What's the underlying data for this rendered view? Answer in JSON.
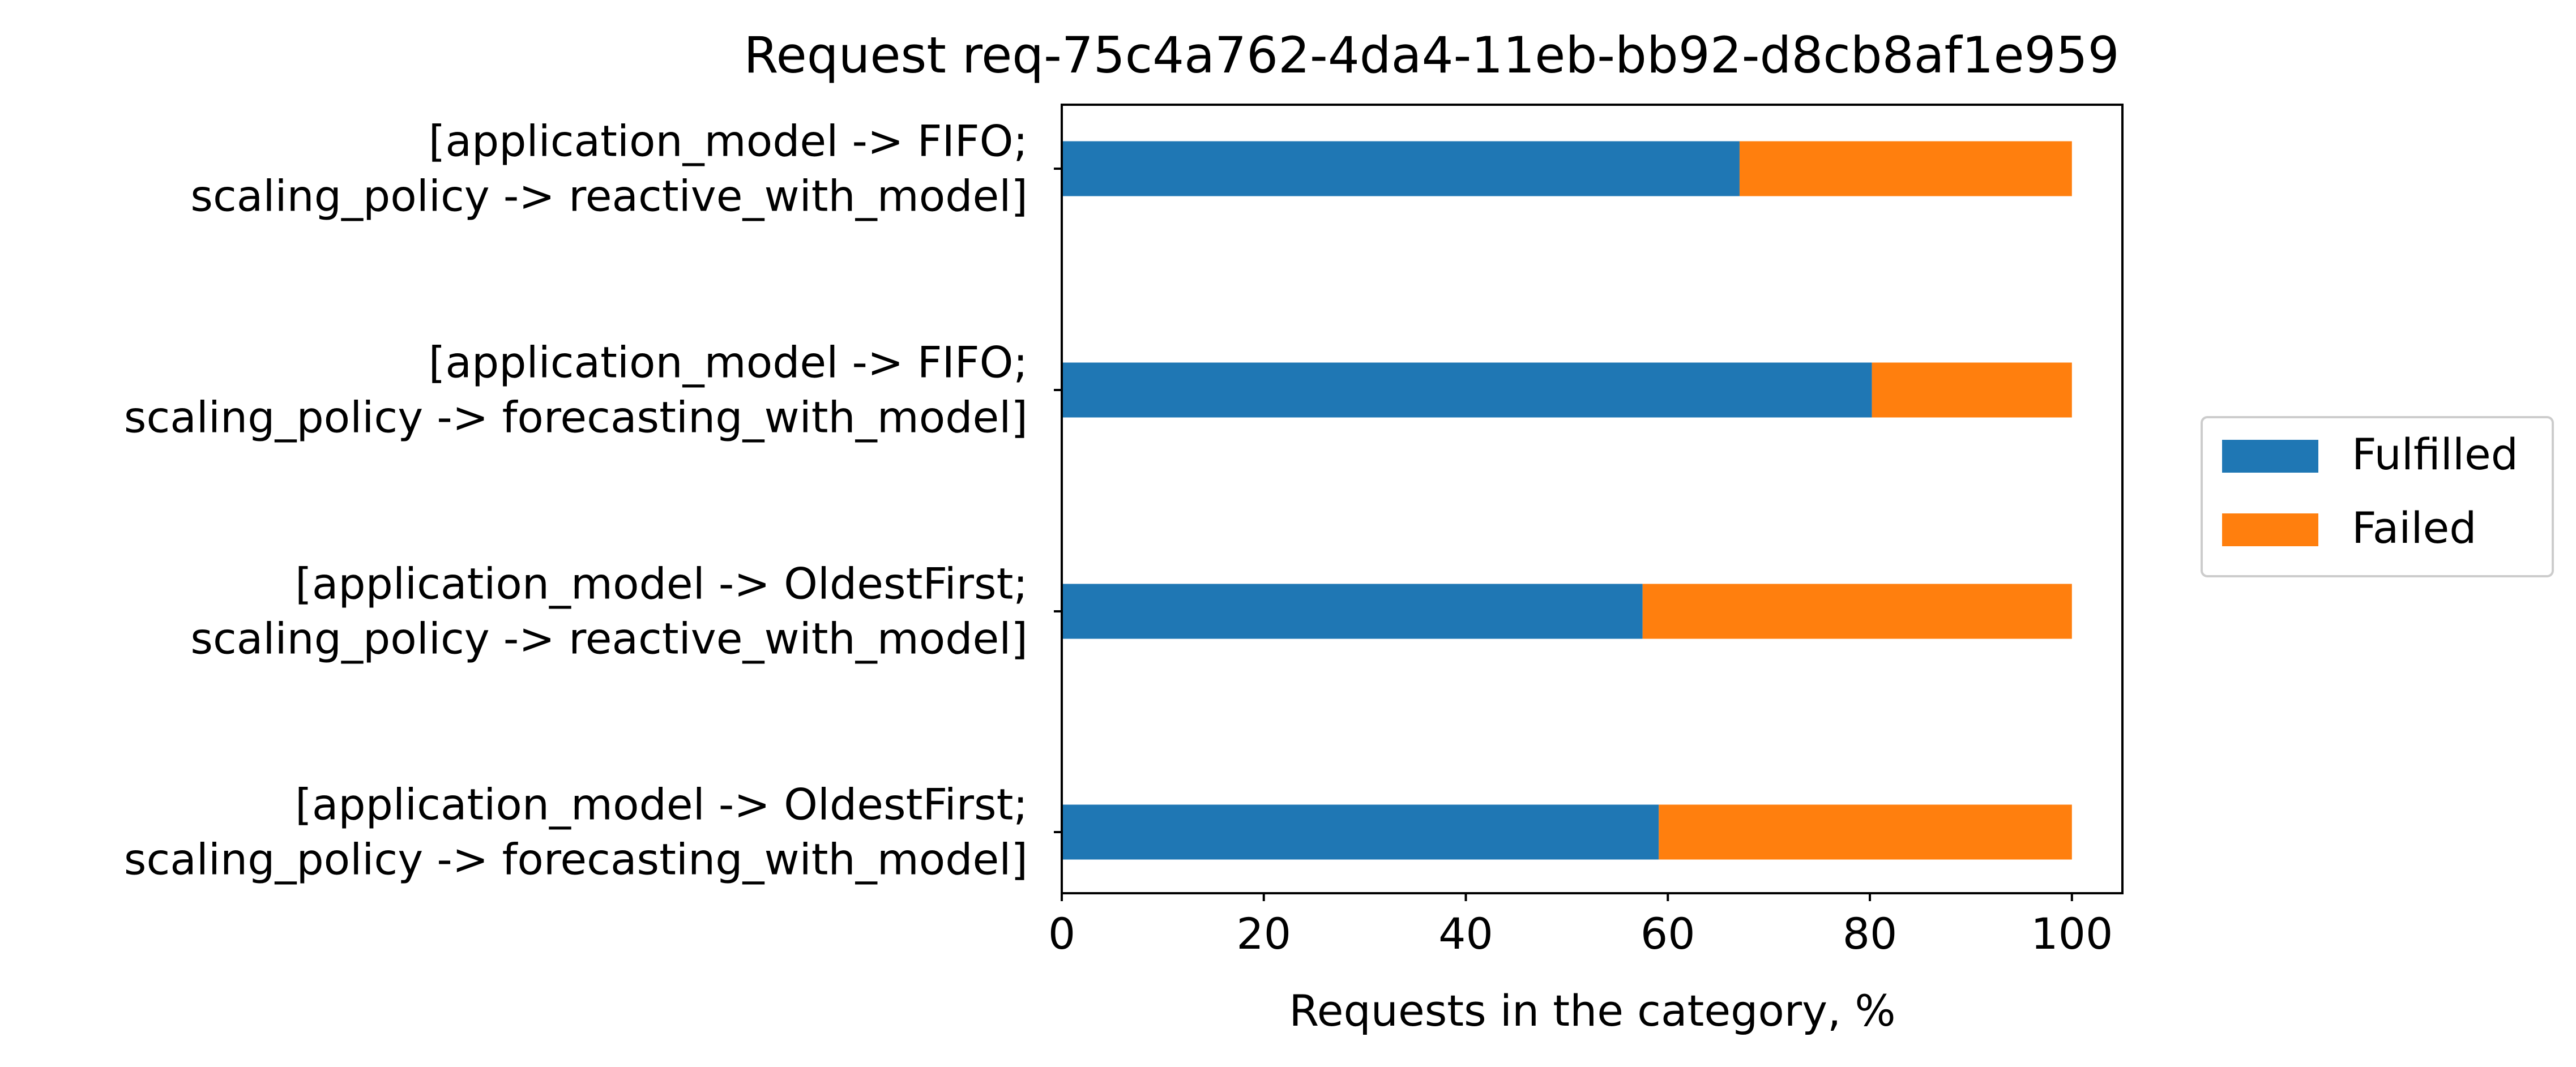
{
  "chart_data": {
    "type": "bar",
    "orientation": "horizontal",
    "stacked": true,
    "title": "Request req-75c4a762-4da4-11eb-bb92-d8cb8af1e959",
    "xlabel": "Requests in the category, %",
    "ylabel": "",
    "xlim": [
      0,
      105
    ],
    "x_ticks": [
      "0",
      "20",
      "40",
      "60",
      "80",
      "100"
    ],
    "grid": false,
    "legend_position": "right",
    "categories": [
      [
        "[application_model -> FIFO;",
        "scaling_policy -> reactive_with_model]"
      ],
      [
        "[application_model -> FIFO;",
        "scaling_policy -> forecasting_with_model]"
      ],
      [
        "[application_model -> OldestFirst;",
        "scaling_policy -> reactive_with_model]"
      ],
      [
        "[application_model -> OldestFirst;",
        "scaling_policy -> forecasting_with_model]"
      ]
    ],
    "series": [
      {
        "name": "Fulfilled",
        "color": "#1f77b4",
        "values": [
          67.1,
          80.2,
          57.5,
          59.1
        ]
      },
      {
        "name": "Failed",
        "color": "#ff7f0e",
        "values": [
          32.9,
          19.8,
          42.5,
          40.9
        ]
      }
    ]
  }
}
